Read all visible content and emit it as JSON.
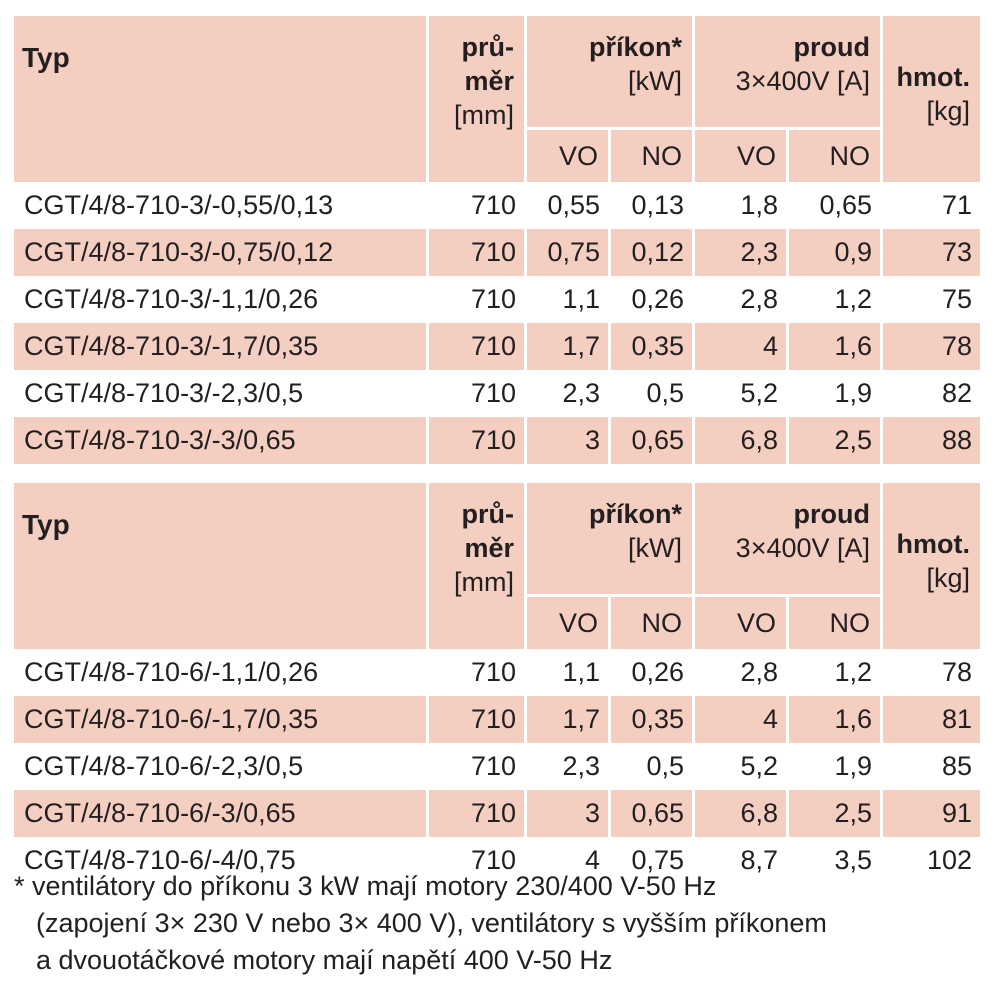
{
  "tables": [
    {
      "header": {
        "typ": "Typ",
        "prumer_l1": "prů-",
        "prumer_l2": "měr",
        "prumer_unit": "[mm]",
        "prikon": "příkon*",
        "prikon_unit": "[kW]",
        "proud": "proud",
        "proud_unit": "3×400V [A]",
        "hmot": "hmot.",
        "hmot_unit": "[kg]",
        "vo1": "VO",
        "no1": "NO",
        "vo2": "VO",
        "no2": "NO"
      },
      "rows": [
        [
          "CGT/4/8-710-3/-0,55/0,13",
          "710",
          "0,55",
          "0,13",
          "1,8",
          "0,65",
          "71"
        ],
        [
          "CGT/4/8-710-3/-0,75/0,12",
          "710",
          "0,75",
          "0,12",
          "2,3",
          "0,9",
          "73"
        ],
        [
          "CGT/4/8-710-3/-1,1/0,26",
          "710",
          "1,1",
          "0,26",
          "2,8",
          "1,2",
          "75"
        ],
        [
          "CGT/4/8-710-3/-1,7/0,35",
          "710",
          "1,7",
          "0,35",
          "4",
          "1,6",
          "78"
        ],
        [
          "CGT/4/8-710-3/-2,3/0,5",
          "710",
          "2,3",
          "0,5",
          "5,2",
          "1,9",
          "82"
        ],
        [
          "CGT/4/8-710-3/-3/0,65",
          "710",
          "3",
          "0,65",
          "6,8",
          "2,5",
          "88"
        ]
      ]
    },
    {
      "header": {
        "typ": "Typ",
        "prumer_l1": "prů-",
        "prumer_l2": "měr",
        "prumer_unit": "[mm]",
        "prikon": "příkon*",
        "prikon_unit": "[kW]",
        "proud": "proud",
        "proud_unit": "3×400V [A]",
        "hmot": "hmot.",
        "hmot_unit": "[kg]",
        "vo1": "VO",
        "no1": "NO",
        "vo2": "VO",
        "no2": "NO"
      },
      "rows": [
        [
          "CGT/4/8-710-6/-1,1/0,26",
          "710",
          "1,1",
          "0,26",
          "2,8",
          "1,2",
          "78"
        ],
        [
          "CGT/4/8-710-6/-1,7/0,35",
          "710",
          "1,7",
          "0,35",
          "4",
          "1,6",
          "81"
        ],
        [
          "CGT/4/8-710-6/-2,3/0,5",
          "710",
          "2,3",
          "0,5",
          "5,2",
          "1,9",
          "85"
        ],
        [
          "CGT/4/8-710-6/-3/0,65",
          "710",
          "3",
          "0,65",
          "6,8",
          "2,5",
          "91"
        ],
        [
          "CGT/4/8-710-6/-4/0,75",
          "710",
          "4",
          "0,75",
          "8,7",
          "3,5",
          "102"
        ]
      ]
    }
  ],
  "footnote": [
    "* ventilátory do příkonu 3 kW mají motory 230/400 V-50 Hz",
    "(zapojení 3× 230 V nebo 3× 400 V), ventilátory s vyšším příkonem",
    "a dvouotáčkové motory mají napětí 400 V-50 Hz"
  ],
  "colors": {
    "header_bg": "#f4cfc1",
    "row_shade": "#f4cfc1",
    "text": "#231f20"
  }
}
